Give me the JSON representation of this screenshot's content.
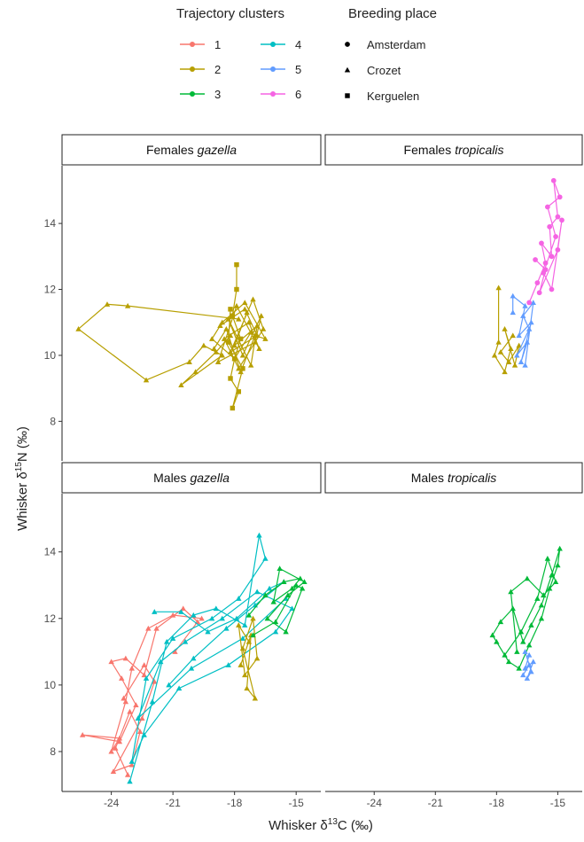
{
  "chart_data": {
    "type": "line",
    "legend": {
      "clusters_title": "Trajectory clusters",
      "places_title": "Breeding place",
      "clusters": [
        {
          "name": "1",
          "color": "#F8766D"
        },
        {
          "name": "2",
          "color": "#B79F00"
        },
        {
          "name": "3",
          "color": "#00BA38"
        },
        {
          "name": "4",
          "color": "#00BFC4"
        },
        {
          "name": "5",
          "color": "#619CFF"
        },
        {
          "name": "6",
          "color": "#F564E3"
        }
      ],
      "places": [
        {
          "name": "Amsterdam",
          "shape": "circle"
        },
        {
          "name": "Crozet",
          "shape": "triangle"
        },
        {
          "name": "Kerguelen",
          "shape": "square"
        }
      ]
    },
    "xlabel": [
      "Whisker δ",
      "13",
      "C (‰)"
    ],
    "ylabel": [
      "Whisker δ",
      "15",
      "N (‰)"
    ],
    "xlim": [
      -26.4,
      -13.8
    ],
    "ylim": [
      6.8,
      15.75
    ],
    "xticks": [
      -24,
      -21,
      -18,
      -15
    ],
    "yticks": [
      8,
      10,
      12,
      14
    ],
    "panels": [
      {
        "sex": "Females",
        "species": "gazella",
        "series": [
          {
            "cluster": 1,
            "place": 1,
            "x": [
              -17.8,
              -23.2,
              -24.2,
              -25.6,
              -22.3,
              -20.2,
              -19.5,
              -18.6,
              -20.6,
              -19.9,
              -18.9,
              -18.2
            ],
            "y": [
              11.1,
              11.5,
              11.55,
              10.8,
              9.25,
              9.8,
              10.3,
              10.0,
              9.1,
              9.5,
              10.1,
              10.6
            ]
          },
          {
            "cluster": 1,
            "place": 2,
            "x": [
              -17.9,
              -17.9,
              -18.1,
              -17.7,
              -18.0,
              -18.2,
              -17.8,
              -18.1,
              -17.6,
              -18.3,
              -18.2
            ],
            "y": [
              12.75,
              12.0,
              11.2,
              10.5,
              9.9,
              9.3,
              8.9,
              8.4,
              9.6,
              10.4,
              11.4
            ]
          },
          {
            "cluster": 1,
            "place": 1,
            "x": [
              -18.7,
              -17.5,
              -16.9,
              -18.2,
              -17.1,
              -16.6,
              -17.8,
              -18.5,
              -17.3,
              -16.8,
              -17.9,
              -18.8,
              -17.0,
              -16.7,
              -17.6,
              -18.3,
              -17.2,
              -16.9,
              -18.0,
              -17.4
            ],
            "y": [
              10.9,
              11.4,
              10.6,
              10.1,
              11.7,
              10.8,
              9.6,
              10.5,
              11.0,
              10.2,
              11.5,
              9.8,
              10.4,
              11.2,
              10.0,
              11.1,
              9.7,
              10.9,
              10.3,
              11.3
            ]
          },
          {
            "cluster": 1,
            "place": 1,
            "x": [
              -19.0,
              -18.4,
              -17.7,
              -17.0,
              -16.5,
              -17.5,
              -18.6,
              -19.1,
              -18.0,
              -17.2
            ],
            "y": [
              10.2,
              10.8,
              9.5,
              10.6,
              10.5,
              11.6,
              11.0,
              10.5,
              9.9,
              10.7
            ]
          }
        ]
      },
      {
        "sex": "Females",
        "species": "tropicalis",
        "series": [
          {
            "cluster": 1,
            "place": 1,
            "x": [
              -17.9,
              -17.9,
              -18.1,
              -17.6,
              -17.3,
              -17.6,
              -17.1,
              -16.9,
              -17.4,
              -17.8,
              -17.2
            ],
            "y": [
              12.05,
              10.4,
              10.0,
              9.5,
              10.2,
              10.8,
              9.7,
              10.3,
              9.8,
              10.1,
              10.6
            ]
          },
          {
            "cluster": 4,
            "place": 1,
            "x": [
              -17.2,
              -17.2,
              -16.6,
              -16.9,
              -16.3,
              -16.8,
              -16.5,
              -17.0,
              -16.4,
              -16.7,
              -16.2,
              -16.6
            ],
            "y": [
              11.3,
              11.8,
              11.5,
              10.6,
              11.0,
              9.8,
              10.4,
              10.0,
              10.8,
              11.2,
              11.6,
              9.7
            ]
          },
          {
            "cluster": 5,
            "place": 0,
            "x": [
              -16.4,
              -16.0,
              -15.6,
              -15.8,
              -15.3,
              -15.4,
              -15.0,
              -15.2,
              -14.9,
              -15.5,
              -15.1,
              -15.7,
              -15.3,
              -14.8,
              -15.0,
              -15.9,
              -15.6,
              -16.1
            ],
            "y": [
              11.6,
              12.2,
              12.8,
              13.4,
              13.0,
              13.9,
              14.2,
              15.3,
              14.8,
              14.5,
              13.6,
              12.5,
              12.0,
              14.1,
              13.2,
              11.9,
              12.6,
              12.9
            ]
          }
        ]
      },
      {
        "sex": "Males",
        "species": "gazella",
        "series": [
          {
            "cluster": 0,
            "place": 1,
            "x": [
              -19.6,
              -21.0,
              -22.2,
              -23.0,
              -23.3,
              -24.0,
              -23.6,
              -25.4,
              -23.6,
              -22.8,
              -23.5,
              -24.0,
              -23.3,
              -22.4,
              -21.8,
              -20.5,
              -19.8,
              -20.9
            ],
            "y": [
              12.0,
              12.1,
              11.7,
              10.5,
              9.5,
              8.0,
              8.4,
              8.5,
              8.3,
              9.4,
              10.2,
              10.7,
              10.8,
              10.3,
              11.7,
              12.3,
              11.9,
              11.0
            ]
          },
          {
            "cluster": 0,
            "place": 1,
            "x": [
              -23.2,
              -23.8,
              -23.1,
              -22.6,
              -23.0,
              -23.9,
              -22.5,
              -21.9,
              -22.4,
              -23.4
            ],
            "y": [
              7.3,
              8.1,
              9.2,
              8.6,
              7.6,
              7.4,
              9.0,
              10.1,
              10.6,
              9.6
            ]
          },
          {
            "cluster": 3,
            "place": 1,
            "x": [
              -23.1,
              -22.0,
              -21.3,
              -20.0,
              -18.9,
              -17.5,
              -16.8,
              -16.5,
              -17.8,
              -19.1,
              -21.0,
              -22.3,
              -23.0,
              -22.4,
              -20.7,
              -18.3,
              -16.0,
              -15.2,
              -16.9,
              -18.6,
              -20.4,
              -21.6,
              -22.7,
              -20.1,
              -17.6,
              -15.5
            ],
            "y": [
              7.1,
              9.5,
              11.3,
              12.1,
              12.3,
              11.8,
              14.5,
              13.8,
              12.6,
              12.0,
              11.4,
              10.2,
              7.7,
              8.5,
              9.9,
              10.6,
              11.6,
              12.3,
              12.8,
              12.0,
              11.3,
              10.7,
              9.0,
              10.5,
              11.4,
              12.6
            ]
          },
          {
            "cluster": 3,
            "place": 1,
            "x": [
              -21.9,
              -20.6,
              -19.3,
              -17.9,
              -16.3,
              -15.6,
              -17.0,
              -18.4,
              -20.0,
              -21.2
            ],
            "y": [
              12.2,
              12.2,
              11.6,
              12.0,
              12.9,
              13.1,
              12.4,
              11.7,
              10.8,
              10.0
            ]
          },
          {
            "cluster": 1,
            "place": 1,
            "x": [
              -17.7,
              -17.2,
              -17.4,
              -17.0,
              -17.6,
              -17.1,
              -16.9,
              -17.5,
              -17.8,
              -17.3
            ],
            "y": [
              10.6,
              11.5,
              9.9,
              9.6,
              11.1,
              12.0,
              10.8,
              10.3,
              11.8,
              11.3
            ]
          },
          {
            "cluster": 2,
            "place": 1,
            "x": [
              -17.3,
              -16.5,
              -15.6,
              -14.8,
              -15.2,
              -16.1,
              -15.8,
              -14.6,
              -15.4,
              -16.4,
              -15.5,
              -14.7,
              -15.0,
              -16.0,
              -17.1
            ],
            "y": [
              12.1,
              12.7,
              13.1,
              13.2,
              12.9,
              12.5,
              13.5,
              13.1,
              12.7,
              12.0,
              11.6,
              12.9,
              13.0,
              11.9,
              11.5
            ]
          }
        ]
      },
      {
        "sex": "Males",
        "species": "tropicalis",
        "series": [
          {
            "cluster": 2,
            "place": 1,
            "x": [
              -18.0,
              -17.4,
              -16.9,
              -16.4,
              -15.8,
              -15.4,
              -15.0,
              -14.9,
              -15.3,
              -15.8,
              -16.3,
              -16.7,
              -17.2,
              -17.8,
              -18.2,
              -17.6,
              -16.8,
              -16.0,
              -15.5,
              -15.1,
              -15.7,
              -16.5,
              -17.3,
              -17.0
            ],
            "y": [
              11.3,
              10.7,
              10.5,
              11.2,
              12.0,
              12.9,
              13.6,
              14.1,
              13.3,
              12.4,
              11.8,
              11.3,
              12.3,
              11.9,
              11.5,
              10.9,
              11.6,
              12.6,
              13.8,
              13.1,
              12.7,
              13.2,
              12.8,
              11.0
            ]
          },
          {
            "cluster": 4,
            "place": 1,
            "x": [
              -16.7,
              -16.4,
              -16.6,
              -16.3,
              -16.5,
              -16.2,
              -16.6,
              -16.4
            ],
            "y": [
              10.3,
              10.6,
              11.0,
              10.4,
              10.2,
              10.7,
              10.5,
              10.9
            ]
          }
        ]
      }
    ]
  }
}
